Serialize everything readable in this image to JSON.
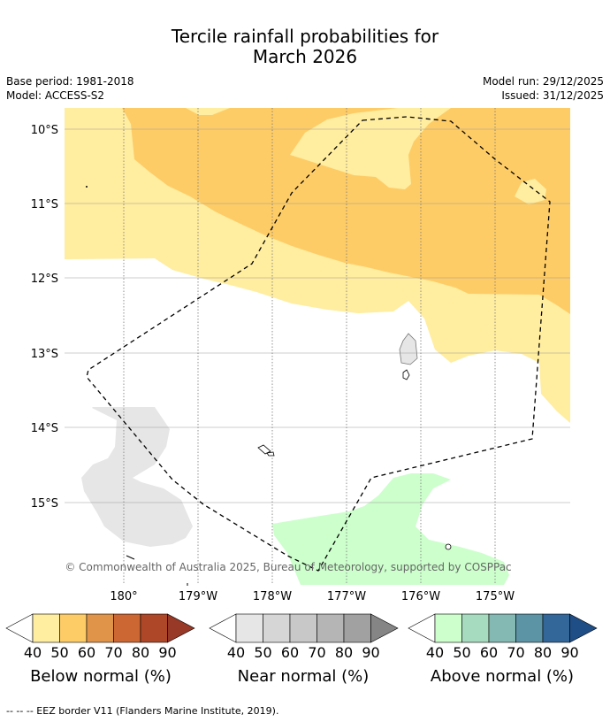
{
  "title_line1": "Tercile rainfall probabilities for",
  "title_line2": "March 2026",
  "meta": {
    "base_period": "Base period: 1981-2018",
    "model": "Model: ACCESS-S2",
    "model_run": "Model run: 29/12/2025",
    "issued": "Issued: 31/12/2025"
  },
  "map": {
    "lat_labels": [
      "10°S",
      "11°S",
      "12°S",
      "13°S",
      "14°S",
      "15°S"
    ],
    "lon_labels": [
      "180°",
      "179°W",
      "178°W",
      "177°W",
      "176°W",
      "175°W"
    ],
    "copyright": "© Commonwealth of Australia 2025, Bureau of Meteorology, supported by COSPPac",
    "regions": [
      {
        "category": "below",
        "probability": "40-50",
        "color": "#ffeda0"
      },
      {
        "category": "below",
        "probability": "50-60",
        "color": "#fecc66"
      },
      {
        "category": "near",
        "probability": "40-50",
        "color": "#e6e6e6"
      },
      {
        "category": "above",
        "probability": "40-50",
        "color": "#ccffcc"
      }
    ],
    "boundary": "EEZ border"
  },
  "legends": [
    {
      "title": "Below normal (%)",
      "ticks": [
        "40",
        "50",
        "60",
        "70",
        "80",
        "90"
      ],
      "colors": [
        "#ffeda0",
        "#fecc66",
        "#e0944a",
        "#cc6633",
        "#ae4728",
        "#983826"
      ]
    },
    {
      "title": "Near normal (%)",
      "ticks": [
        "40",
        "50",
        "60",
        "70",
        "80",
        "90"
      ],
      "colors": [
        "#e6e6e6",
        "#d6d6d6",
        "#c8c8c8",
        "#b5b5b5",
        "#a1a1a1",
        "#858585"
      ]
    },
    {
      "title": "Above normal (%)",
      "ticks": [
        "40",
        "50",
        "60",
        "70",
        "80",
        "90"
      ],
      "colors": [
        "#ccffcc",
        "#a6dbbf",
        "#84b8b3",
        "#5c93a5",
        "#336699",
        "#1f4e86"
      ]
    }
  ],
  "footnote": "--  --  -- EEZ border V11 (Flanders Marine Institute, 2019)."
}
